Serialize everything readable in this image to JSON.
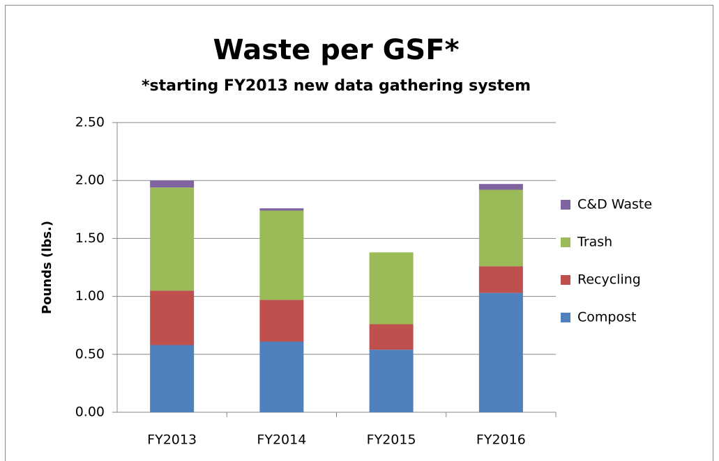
{
  "chart_data": {
    "type": "stacked_bar",
    "title": "Waste per GSF*",
    "subtitle": "*starting FY2013 new data gathering system",
    "y_label": "Pounds  (lbs.)",
    "categories": [
      "FY2013",
      "FY2014",
      "FY2015",
      "FY2016"
    ],
    "series": [
      {
        "name": "Compost",
        "color": "#4f81bd",
        "values": [
          0.58,
          0.61,
          0.54,
          1.03
        ]
      },
      {
        "name": "Recycling",
        "color": "#c0504d",
        "values": [
          0.47,
          0.36,
          0.22,
          0.23
        ]
      },
      {
        "name": "Trash",
        "color": "#9bbb59",
        "values": [
          0.89,
          0.77,
          0.62,
          0.66
        ]
      },
      {
        "name": "C&D Waste",
        "color": "#8064a2",
        "values": [
          0.06,
          0.02,
          0,
          0.05
        ]
      }
    ],
    "ylim": [
      0,
      2.5
    ],
    "yticks": [
      {
        "value": 0,
        "label": "0.00"
      },
      {
        "value": 0.5,
        "label": "0.50"
      },
      {
        "value": 1,
        "label": "1.00"
      },
      {
        "value": 1.5,
        "label": "1.50"
      },
      {
        "value": 2,
        "label": "2.00"
      },
      {
        "value": 2.5,
        "label": "2.50"
      }
    ],
    "grid": true,
    "legend": "right"
  }
}
